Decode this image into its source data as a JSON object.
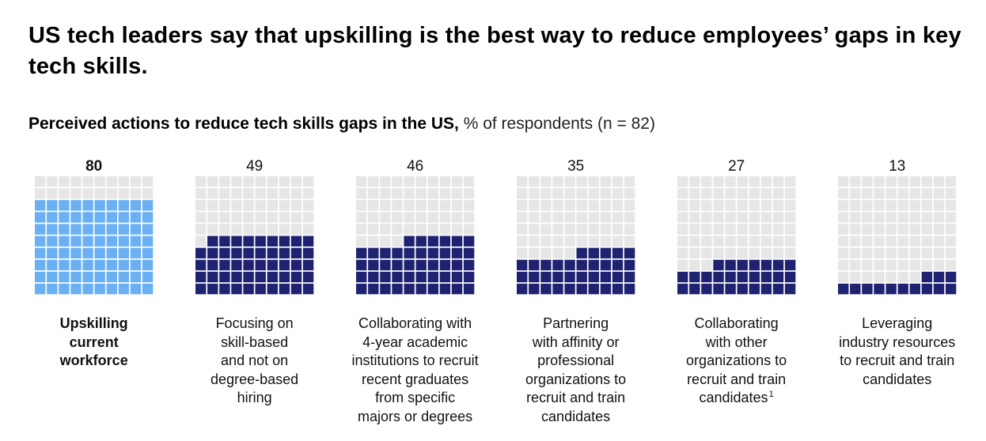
{
  "title": "US tech leaders say that upskilling is the best way to reduce employees’ gaps in key tech skills.",
  "subtitle": {
    "bold": "Perceived actions to reduce tech skills gaps in the US,",
    "light": "% of respondents (n = 82)"
  },
  "colors": {
    "empty": "#e6e6e6",
    "highlight": "#6ab0f3",
    "filled": "#1f2270"
  },
  "chart_data": {
    "type": "waffle",
    "unit": "% of respondents",
    "n": 82,
    "grid": {
      "rows": 10,
      "cols": 10
    },
    "categories": [
      "Upskilling current workforce",
      "Focusing on skill-based and not on degree-based hiring",
      "Collaborating with 4-year academic institutions to recruit recent graduates from specific majors or degrees",
      "Partnering with affinity or professional organizations to recruit and train candidates",
      "Collaborating with other organizations to recruit and train candidates",
      "Leveraging industry resources to recruit and train candidates"
    ],
    "values": [
      80,
      49,
      46,
      35,
      27,
      13
    ],
    "highlight_index": 0,
    "footnotes": [
      "",
      "",
      "",
      "",
      "1",
      ""
    ]
  },
  "labels": [
    {
      "text": "Upskilling\ncurrent\nworkforce",
      "footnote": ""
    },
    {
      "text": "Focusing on\nskill-based\nand not on\ndegree-based\nhiring",
      "footnote": ""
    },
    {
      "text": "Collaborating with\n4-year academic\ninstitutions to recruit\nrecent graduates\nfrom specific\nmajors or degrees",
      "footnote": ""
    },
    {
      "text": "Partnering\nwith affinity or\nprofessional\norganizations to\nrecruit and train\ncandidates",
      "footnote": ""
    },
    {
      "text": "Collaborating\nwith other\norganizations to\nrecruit and train\ncandidates",
      "footnote": "1"
    },
    {
      "text": "Leveraging\nindustry resources\nto recruit and train\ncandidates",
      "footnote": ""
    }
  ]
}
